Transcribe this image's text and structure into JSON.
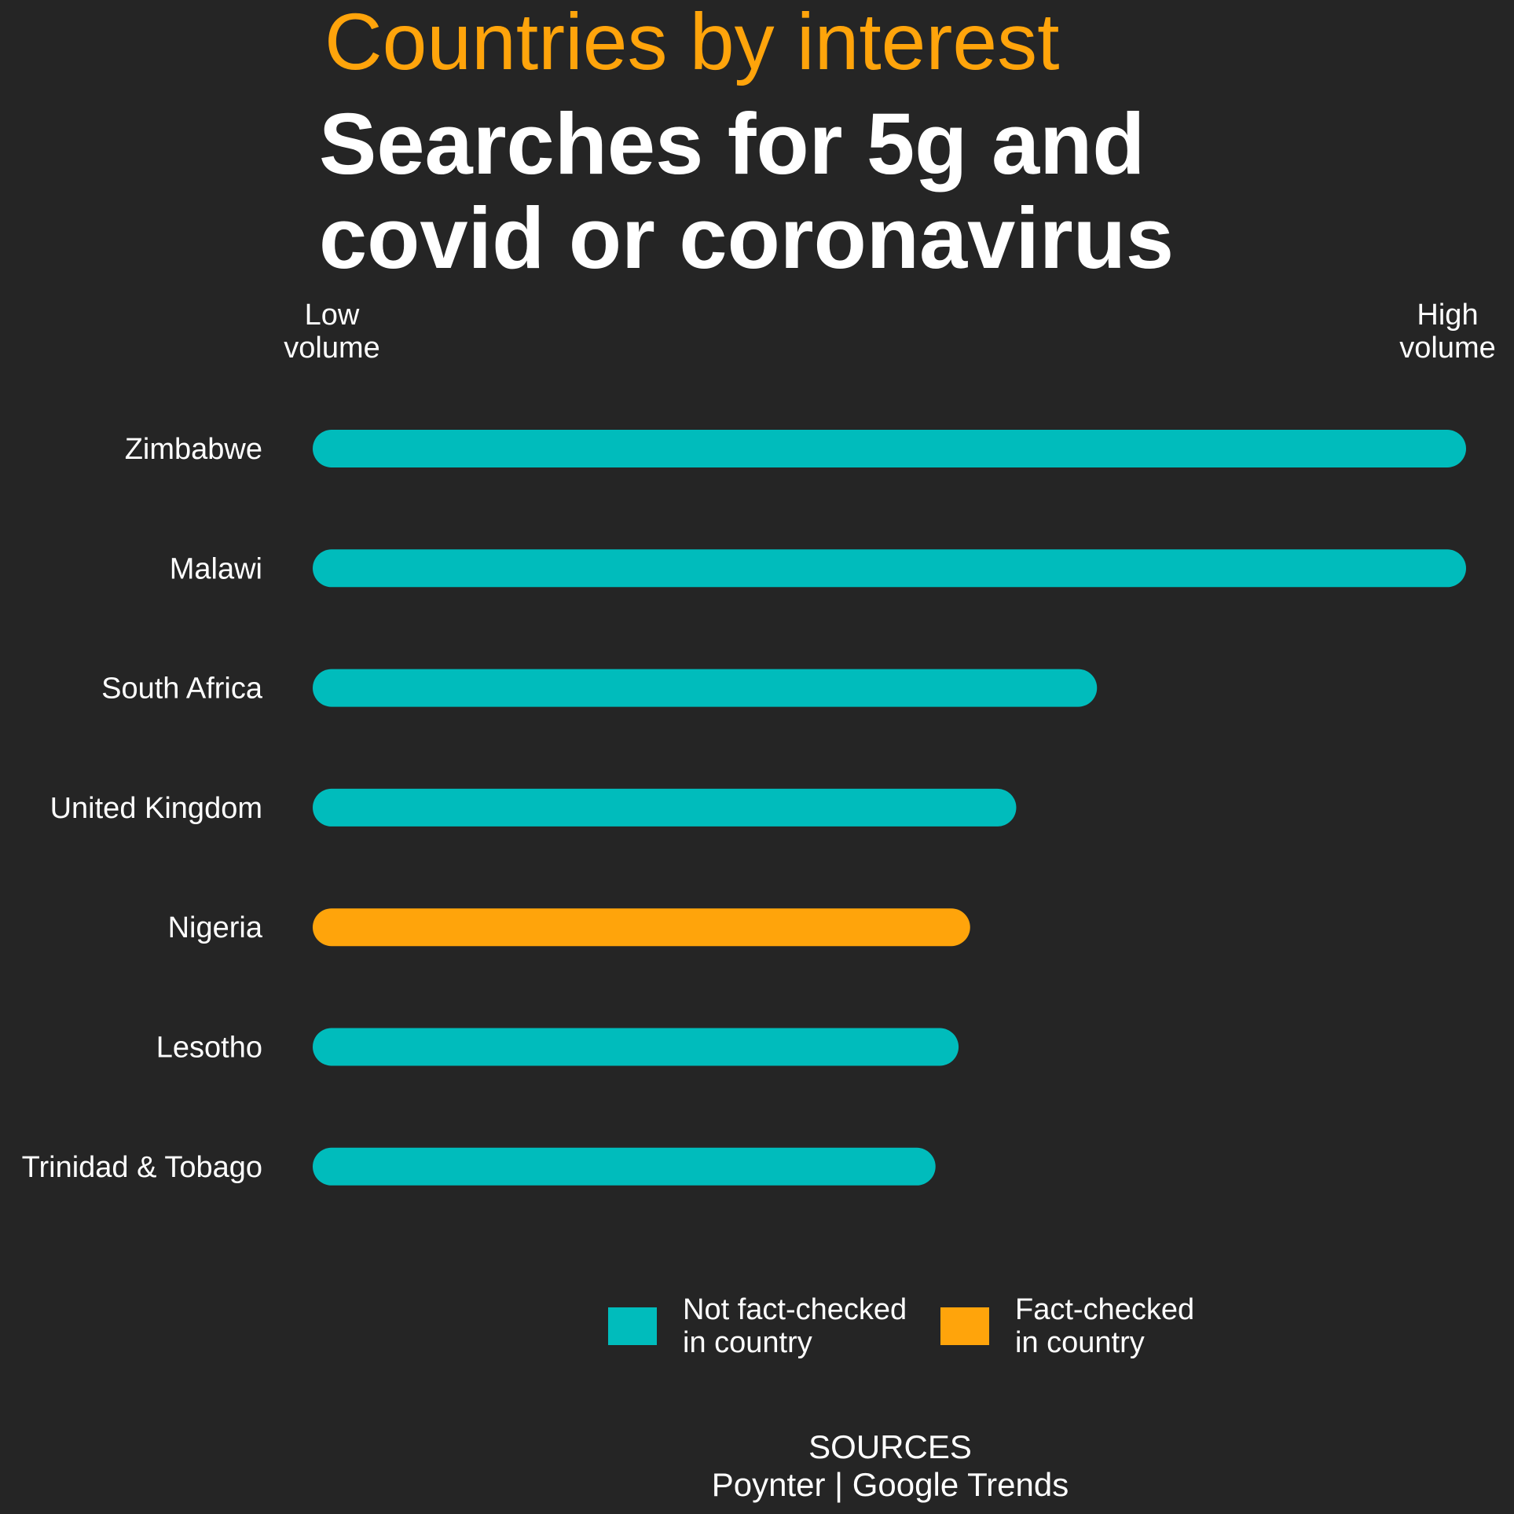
{
  "header": {
    "subtitle": "Countries by interest",
    "title_line1": "Searches for 5g and",
    "title_line2": "covid or coronavirus"
  },
  "axis": {
    "low_line1": "Low",
    "low_line2": "volume",
    "high_line1": "High",
    "high_line2": "volume"
  },
  "colors": {
    "background": "#252525",
    "subtitle": "#FFA40B",
    "not_fact_checked": "#00BCBC",
    "fact_checked": "#FFA40B",
    "text": "#FFFFFF"
  },
  "chart_data": {
    "type": "bar",
    "orientation": "horizontal",
    "title": "Searches for 5g and covid or coronavirus",
    "subtitle": "Countries by interest",
    "xlabel": "",
    "ylabel": "",
    "xlim": [
      0,
      100
    ],
    "grid": false,
    "legend_position": "bottom",
    "categories": [
      "Zimbabwe",
      "Malawi",
      "South Africa",
      "United Kingdom",
      "Nigeria",
      "Lesotho",
      "Trinidad & Tobago"
    ],
    "values": [
      100,
      100,
      68,
      61,
      57,
      56,
      54
    ],
    "fact_checked": [
      false,
      false,
      false,
      false,
      true,
      false,
      false
    ]
  },
  "legend": {
    "item1_line1": "Not fact-checked",
    "item1_line2": "in country",
    "item2_line1": "Fact-checked",
    "item2_line2": "in country"
  },
  "sources": {
    "line1": "SOURCES",
    "line2": "Poynter | Google Trends"
  }
}
